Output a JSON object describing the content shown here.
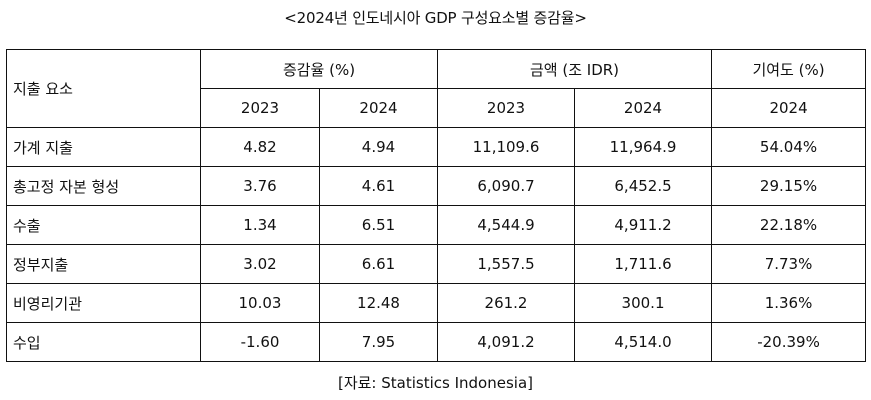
{
  "title": "<2024년 인도네시아 GDP 구성요소별 증감율>",
  "header": {
    "item": "지출 요소",
    "growth_group": "증감율 (%)",
    "amount_group": "금액 (조 IDR)",
    "contrib_group": "기여도 (%)",
    "growth_2023": "2023",
    "growth_2024": "2024",
    "amount_2023": "2023",
    "amount_2024": "2024",
    "contrib_2024": "2024"
  },
  "rows": [
    {
      "item": "가계 지출",
      "g2023": "4.82",
      "g2024": "4.94",
      "a2023": "11,109.6",
      "a2024": "11,964.9",
      "c2024": "54.04%"
    },
    {
      "item": "총고정 자본 형성",
      "g2023": "3.76",
      "g2024": "4.61",
      "a2023": "6,090.7",
      "a2024": "6,452.5",
      "c2024": "29.15%"
    },
    {
      "item": "수출",
      "g2023": "1.34",
      "g2024": "6.51",
      "a2023": "4,544.9",
      "a2024": "4,911.2",
      "c2024": "22.18%"
    },
    {
      "item": "정부지출",
      "g2023": "3.02",
      "g2024": "6.61",
      "a2023": "1,557.5",
      "a2024": "1,711.6",
      "c2024": "7.73%"
    },
    {
      "item": "비영리기관",
      "g2023": "10.03",
      "g2024": "12.48",
      "a2023": "261.2",
      "a2024": "300.1",
      "c2024": "1.36%"
    },
    {
      "item": "수입",
      "g2023": "-1.60",
      "g2024": "7.95",
      "a2023": "4,091.2",
      "a2024": "4,514.0",
      "c2024": "-20.39%"
    }
  ],
  "source": "[자료: Statistics Indonesia]"
}
